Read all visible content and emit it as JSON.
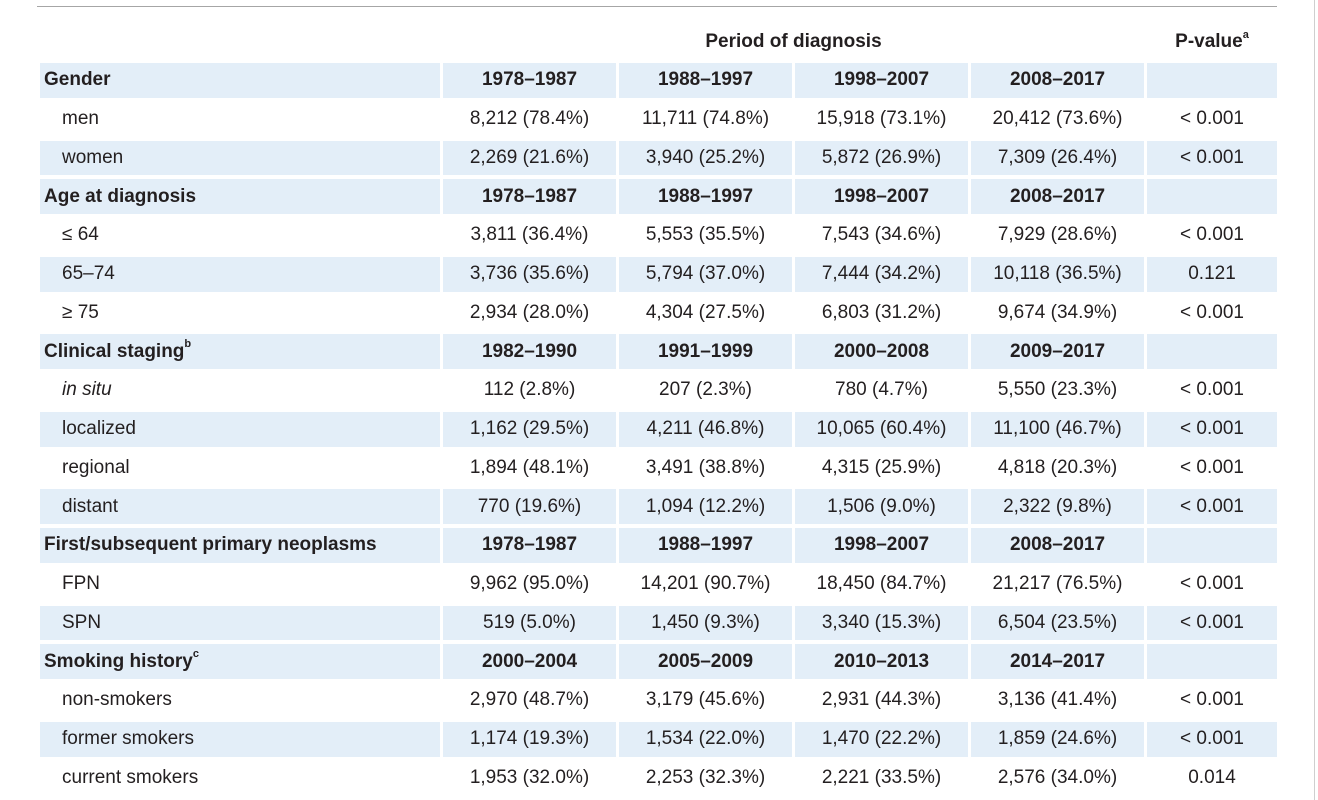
{
  "header": {
    "period_label": "Period of diagnosis",
    "pvalue_label": "P-value",
    "pvalue_sup": "a"
  },
  "sections": [
    {
      "title": "Gender",
      "title_sup": "",
      "periods": [
        "1978–1987",
        "1988–1997",
        "1998–2007",
        "2008–2017"
      ],
      "rows": [
        {
          "label": "men",
          "italic": false,
          "values": [
            "8,212 (78.4%)",
            "11,711 (74.8%)",
            "15,918 (73.1%)",
            "20,412 (73.6%)"
          ],
          "p": "< 0.001"
        },
        {
          "label": "women",
          "italic": false,
          "values": [
            "2,269 (21.6%)",
            "3,940 (25.2%)",
            "5,872 (26.9%)",
            "7,309 (26.4%)"
          ],
          "p": "< 0.001"
        }
      ]
    },
    {
      "title": "Age at diagnosis",
      "title_sup": "",
      "periods": [
        "1978–1987",
        "1988–1997",
        "1998–2007",
        "2008–2017"
      ],
      "rows": [
        {
          "label": "≤ 64",
          "italic": false,
          "values": [
            "3,811 (36.4%)",
            "5,553 (35.5%)",
            "7,543 (34.6%)",
            "7,929 (28.6%)"
          ],
          "p": "< 0.001"
        },
        {
          "label": "65–74",
          "italic": false,
          "values": [
            "3,736 (35.6%)",
            "5,794 (37.0%)",
            "7,444 (34.2%)",
            "10,118 (36.5%)"
          ],
          "p": "0.121"
        },
        {
          "label": "≥ 75",
          "italic": false,
          "values": [
            "2,934 (28.0%)",
            "4,304 (27.5%)",
            "6,803 (31.2%)",
            "9,674 (34.9%)"
          ],
          "p": "< 0.001"
        }
      ]
    },
    {
      "title": "Clinical staging",
      "title_sup": "b",
      "periods": [
        "1982–1990",
        "1991–1999",
        "2000–2008",
        "2009–2017"
      ],
      "rows": [
        {
          "label": "in situ",
          "italic": true,
          "values": [
            "112 (2.8%)",
            "207 (2.3%)",
            "780 (4.7%)",
            "5,550 (23.3%)"
          ],
          "p": "< 0.001"
        },
        {
          "label": "localized",
          "italic": false,
          "values": [
            "1,162 (29.5%)",
            "4,211 (46.8%)",
            "10,065 (60.4%)",
            "11,100 (46.7%)"
          ],
          "p": "< 0.001"
        },
        {
          "label": "regional",
          "italic": false,
          "values": [
            "1,894 (48.1%)",
            "3,491 (38.8%)",
            "4,315 (25.9%)",
            "4,818 (20.3%)"
          ],
          "p": "< 0.001"
        },
        {
          "label": "distant",
          "italic": false,
          "values": [
            "770 (19.6%)",
            "1,094 (12.2%)",
            "1,506 (9.0%)",
            "2,322 (9.8%)"
          ],
          "p": "< 0.001"
        }
      ]
    },
    {
      "title": "First/subsequent primary neoplasms",
      "title_sup": "",
      "periods": [
        "1978–1987",
        "1988–1997",
        "1998–2007",
        "2008–2017"
      ],
      "rows": [
        {
          "label": "FPN",
          "italic": false,
          "values": [
            "9,962 (95.0%)",
            "14,201 (90.7%)",
            "18,450 (84.7%)",
            "21,217 (76.5%)"
          ],
          "p": "< 0.001"
        },
        {
          "label": "SPN",
          "italic": false,
          "values": [
            "519 (5.0%)",
            "1,450 (9.3%)",
            "3,340 (15.3%)",
            "6,504 (23.5%)"
          ],
          "p": "< 0.001"
        }
      ]
    },
    {
      "title": "Smoking history",
      "title_sup": "c",
      "periods": [
        "2000–2004",
        "2005–2009",
        "2010–2013",
        "2014–2017"
      ],
      "rows": [
        {
          "label": "non-smokers",
          "italic": false,
          "values": [
            "2,970 (48.7%)",
            "3,179 (45.6%)",
            "2,931 (44.3%)",
            "3,136 (41.4%)"
          ],
          "p": "< 0.001"
        },
        {
          "label": "former smokers",
          "italic": false,
          "values": [
            "1,174 (19.3%)",
            "1,534 (22.0%)",
            "1,470 (22.2%)",
            "1,859 (24.6%)"
          ],
          "p": "< 0.001"
        },
        {
          "label": "current smokers",
          "italic": false,
          "values": [
            "1,953 (32.0%)",
            "2,253 (32.3%)",
            "2,221 (33.5%)",
            "2,576 (34.0%)"
          ],
          "p": "0.014"
        }
      ]
    }
  ],
  "colors": {
    "row_shade": "#e3eef8",
    "text": "#231f20",
    "rule": "#a6a6a6"
  }
}
